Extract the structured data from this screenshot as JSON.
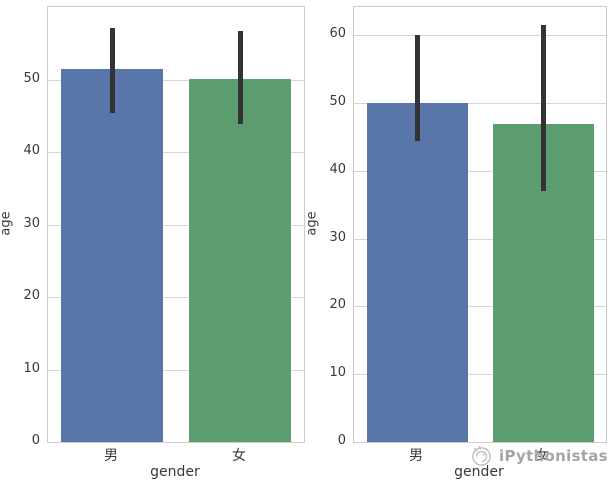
{
  "figure": {
    "background": "#ffffff",
    "spine_color": "#cccccc"
  },
  "watermark": {
    "text": "iPythonistas",
    "logo": "ipythonistas-circular-logo",
    "color": "#a5a5a5"
  },
  "chart_data": [
    {
      "type": "bar",
      "title": "",
      "categories": [
        "男",
        "女"
      ],
      "category_keys": [
        "male",
        "female"
      ],
      "values": [
        51.5,
        50.1
      ],
      "errors": [
        [
          45.5,
          57.2
        ],
        [
          44.0,
          56.8
        ]
      ],
      "xlabel": "gender",
      "ylabel": "age",
      "yticks": [
        0,
        10,
        20,
        30,
        40,
        50
      ],
      "ylim": [
        0,
        60.1
      ],
      "grid": true,
      "legend": false,
      "bar_colors": [
        "#5876a9",
        "#5b9d6e"
      ],
      "error_color": "#333333",
      "grid_color": "#d6d6d6"
    },
    {
      "type": "bar",
      "title": "",
      "categories": [
        "男",
        "女"
      ],
      "category_keys": [
        "male",
        "female"
      ],
      "values": [
        50.1,
        47.0
      ],
      "errors": [
        [
          44.3,
          60.0
        ],
        [
          37.0,
          61.5
        ]
      ],
      "xlabel": "gender",
      "ylabel": "age",
      "yticks": [
        0,
        10,
        20,
        30,
        40,
        50,
        60
      ],
      "ylim": [
        0,
        64.2
      ],
      "grid": true,
      "legend": false,
      "bar_colors": [
        "#5876a9",
        "#5b9d6e"
      ],
      "error_color": "#333333",
      "grid_color": "#d6d6d6"
    }
  ]
}
